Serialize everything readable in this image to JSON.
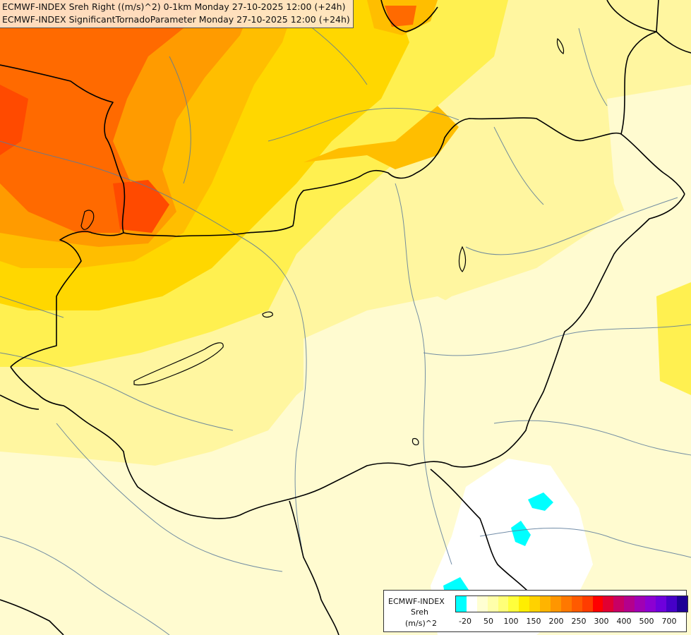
{
  "title_lines": [
    "ECMWF-INDEX Sreh Right ((m/s)^2) 0-1km Monday 27-10-2025 12:00 (+24h)",
    "ECMWF-INDEX SignificantTornadoParameter Monday 27-10-2025 12:00 (+24h)"
  ],
  "legend": {
    "name": "ECMWF-INDEX",
    "variable": "Sreh",
    "unit": "(m/s)^2",
    "colors": [
      "#00ffff",
      "#ffffff",
      "#ffffd2",
      "#ffffaa",
      "#ffff78",
      "#ffff3c",
      "#ffee00",
      "#ffd200",
      "#ffb400",
      "#ff9600",
      "#ff7800",
      "#ff5a00",
      "#ff3c00",
      "#ff0000",
      "#e10032",
      "#c80064",
      "#b4008c",
      "#a000b4",
      "#8c00d2",
      "#6e00dc",
      "#4600c8",
      "#1e0096"
    ],
    "ticks": [
      "-20",
      "50",
      "100",
      "150",
      "200",
      "250",
      "300",
      "400",
      "500",
      "700"
    ]
  },
  "field_colors": {
    "pale": "#fffbd0",
    "yellow_light": "#fff6a0",
    "yellow": "#fff050",
    "gold": "#ffd700",
    "orange_light": "#ffbe00",
    "orange": "#ff9b00",
    "red_orange": "#ff6a00",
    "red": "#ff4a00",
    "white": "#ffffff",
    "cyan": "#00ffff",
    "border": "#000000",
    "river": "#5a7a9a"
  }
}
